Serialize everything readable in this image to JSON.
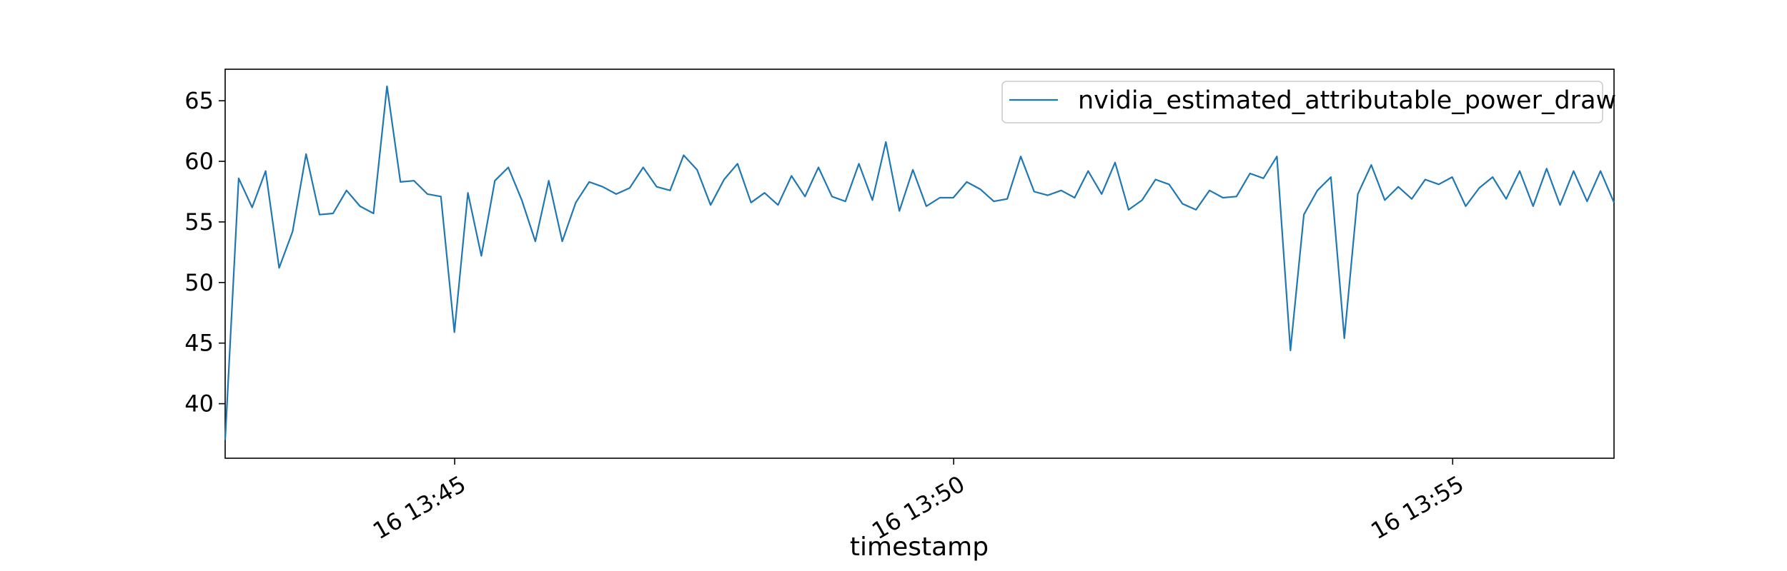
{
  "chart_data": {
    "type": "line",
    "title": "",
    "xlabel": "timestamp",
    "ylabel": "",
    "x_start": "13:42:42",
    "x_end": "13:56:37",
    "xticks": [
      {
        "time": "13:45:00",
        "label": "16 13:45"
      },
      {
        "time": "13:50:00",
        "label": "16 13:50"
      },
      {
        "time": "13:55:00",
        "label": "16 13:55"
      }
    ],
    "ylim": [
      35.5,
      67.6
    ],
    "yticks": [
      40,
      45,
      50,
      55,
      60,
      65
    ],
    "grid": false,
    "legend_position": "top-right",
    "series": [
      {
        "name": "nvidia_estimated_attributable_power_draw",
        "color": "#1f77b4",
        "start_time": "13:42:42",
        "end_time": "13:56:37",
        "values": [
          37.0,
          58.6,
          56.2,
          59.2,
          51.2,
          54.2,
          60.6,
          55.6,
          55.7,
          57.6,
          56.3,
          55.7,
          66.2,
          58.3,
          58.4,
          57.3,
          57.1,
          45.9,
          57.4,
          52.2,
          58.4,
          59.5,
          56.8,
          53.4,
          58.4,
          53.4,
          56.6,
          58.3,
          57.9,
          57.3,
          57.8,
          59.5,
          57.9,
          57.6,
          60.5,
          59.3,
          56.4,
          58.5,
          59.8,
          56.6,
          57.4,
          56.4,
          58.8,
          57.1,
          59.5,
          57.1,
          56.7,
          59.8,
          56.8,
          61.6,
          55.9,
          59.3,
          56.3,
          57.0,
          57.0,
          58.3,
          57.7,
          56.7,
          56.9,
          60.4,
          57.5,
          57.2,
          57.6,
          57.0,
          59.2,
          57.3,
          59.9,
          56.0,
          56.8,
          58.5,
          58.1,
          56.5,
          56.0,
          57.6,
          57.0,
          57.1,
          59.0,
          58.6,
          60.4,
          44.4,
          55.6,
          57.6,
          58.7,
          45.4,
          57.3,
          59.7,
          56.8,
          57.9,
          56.9,
          58.5,
          58.1,
          58.7,
          56.3,
          57.8,
          58.7,
          56.9,
          59.2,
          56.3,
          59.4,
          56.4,
          59.2,
          56.7,
          59.2,
          56.6
        ]
      }
    ]
  }
}
